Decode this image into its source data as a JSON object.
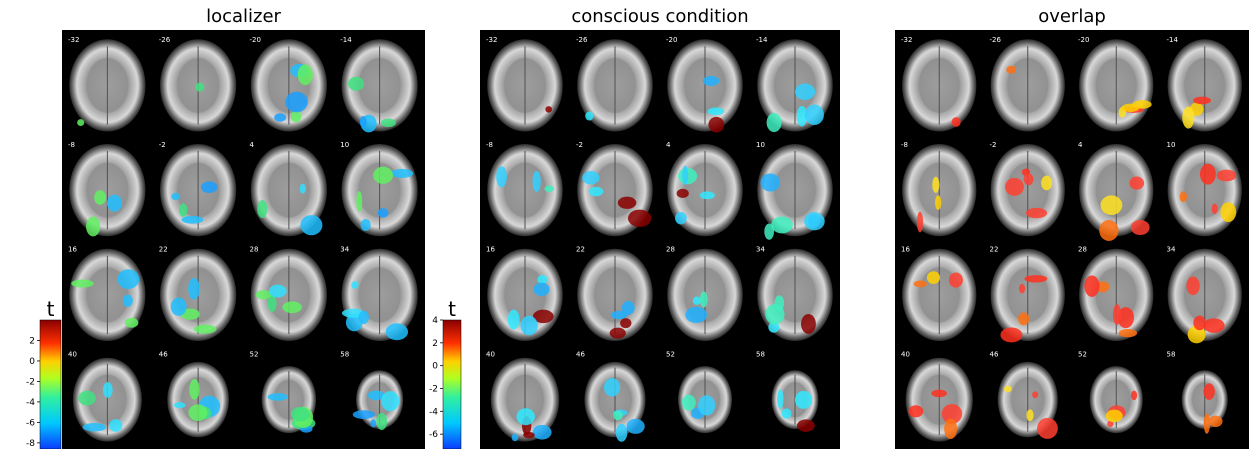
{
  "panels": [
    {
      "title": "localizer",
      "slices": [
        -32,
        -26,
        -20,
        -14,
        -8,
        -2,
        4,
        10,
        16,
        22,
        28,
        34,
        40,
        46,
        52,
        58
      ]
    },
    {
      "title": "conscious condition",
      "slices": [
        -32,
        -26,
        -20,
        -14,
        -8,
        -2,
        4,
        10,
        16,
        22,
        28,
        34,
        40,
        46,
        52,
        58
      ]
    },
    {
      "title": "overlap",
      "slices": [
        -32,
        -26,
        -20,
        -14,
        -8,
        -2,
        4,
        10,
        16,
        22,
        28,
        34,
        40,
        46,
        52,
        58
      ]
    }
  ],
  "colorbars": [
    {
      "title": "t",
      "ticks": [
        2,
        0,
        -2,
        -4,
        -6,
        -8
      ],
      "range": [
        -8.6,
        4
      ]
    },
    {
      "title": "t",
      "ticks": [
        4,
        2,
        0,
        -2,
        -4,
        -6
      ],
      "range": [
        -7.3,
        4
      ]
    }
  ]
}
